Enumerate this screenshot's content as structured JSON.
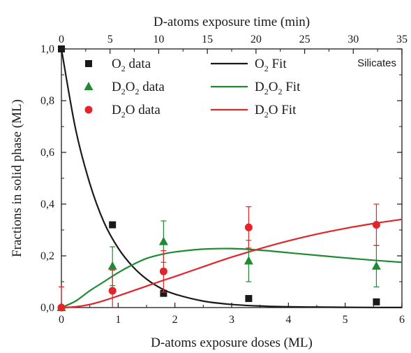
{
  "colors": {
    "o2": "#1a1a1a",
    "d2o2": "#1e8a33",
    "d2o": "#e3242b",
    "axis": "#1a1a1a"
  },
  "chart_data": {
    "type": "scatter",
    "xlabel": "D-atoms exposure doses (ML)",
    "x2label": "D-atoms exposure time (min)",
    "ylabel": "Fractions in solid phase (ML)",
    "annotation": "Silicates",
    "xlim": [
      0,
      6
    ],
    "x2lim": [
      0,
      35
    ],
    "ylim": [
      0,
      1.0
    ],
    "xticks": [
      "0",
      "1",
      "2",
      "3",
      "4",
      "5",
      "6"
    ],
    "x2ticks": [
      "0",
      "5",
      "10",
      "15",
      "20",
      "25",
      "30",
      "35"
    ],
    "yticks": [
      "0,0",
      "0,2",
      "0,4",
      "0,6",
      "0,8",
      "1,0"
    ],
    "series": [
      {
        "name": "O2 data",
        "legend_base": "O",
        "legend_sub": "2",
        "legend_suffix": "data",
        "marker": "square",
        "color_key": "o2",
        "x": [
          0,
          0.9,
          1.8,
          3.3,
          5.55
        ],
        "y": [
          1.0,
          0.32,
          0.055,
          0.035,
          0.022
        ],
        "err": [
          0,
          0,
          0,
          0,
          0
        ]
      },
      {
        "name": "D2O2 data",
        "legend_base": "D",
        "legend_sub": "2",
        "legend_mid": "O",
        "legend_sub2": "2",
        "legend_suffix": "data",
        "marker": "triangle",
        "color_key": "d2o2",
        "x": [
          0,
          0.9,
          1.8,
          3.3,
          5.55
        ],
        "y": [
          0,
          0.16,
          0.255,
          0.18,
          0.16
        ],
        "err": [
          0,
          0.075,
          0.08,
          0.08,
          0.08
        ]
      },
      {
        "name": "D2O data",
        "legend_base": "D",
        "legend_sub": "2",
        "legend_mid": "O",
        "legend_suffix": "data",
        "marker": "circle",
        "color_key": "d2o",
        "x": [
          0,
          0.9,
          1.8,
          3.3,
          5.55
        ],
        "y": [
          0,
          0.065,
          0.14,
          0.31,
          0.32
        ],
        "err": [
          0.08,
          0.08,
          0.08,
          0.08,
          0.08
        ]
      }
    ],
    "fits": [
      {
        "name": "O2 Fit",
        "legend_base": "O",
        "legend_sub": "2",
        "legend_suffix": "Fit",
        "color_key": "o2",
        "x": [
          0,
          0.25,
          0.5,
          0.75,
          1.0,
          1.25,
          1.5,
          1.75,
          2.0,
          2.5,
          3.0,
          3.5,
          4.0,
          4.5,
          5.0,
          5.5,
          6.0
        ],
        "y": [
          1.0,
          0.69,
          0.48,
          0.33,
          0.23,
          0.16,
          0.11,
          0.075,
          0.052,
          0.025,
          0.012,
          0.006,
          0.003,
          0.002,
          0.001,
          0.0005,
          0.0003
        ]
      },
      {
        "name": "D2O2 Fit",
        "legend_base": "D",
        "legend_sub": "2",
        "legend_mid": "O",
        "legend_sub2": "2",
        "legend_suffix": "Fit",
        "color_key": "d2o2",
        "x": [
          0,
          0.25,
          0.5,
          0.75,
          1.0,
          1.25,
          1.5,
          1.75,
          2.0,
          2.5,
          3.0,
          3.5,
          4.0,
          4.5,
          5.0,
          5.5,
          6.0
        ],
        "y": [
          0,
          0.025,
          0.065,
          0.1,
          0.135,
          0.165,
          0.19,
          0.205,
          0.215,
          0.226,
          0.228,
          0.222,
          0.212,
          0.202,
          0.192,
          0.183,
          0.175
        ],
        "err": []
      },
      {
        "name": "D2O Fit",
        "legend_base": "D",
        "legend_sub": "2",
        "legend_mid": "O",
        "legend_suffix": "Fit",
        "color_key": "d2o",
        "x": [
          0,
          0.25,
          0.5,
          0.75,
          1.0,
          1.25,
          1.5,
          1.75,
          2.0,
          2.5,
          3.0,
          3.5,
          4.0,
          4.5,
          5.0,
          5.5,
          6.0
        ],
        "y": [
          0,
          0.003,
          0.012,
          0.027,
          0.045,
          0.064,
          0.083,
          0.102,
          0.12,
          0.158,
          0.195,
          0.228,
          0.258,
          0.284,
          0.306,
          0.325,
          0.341
        ]
      }
    ]
  }
}
